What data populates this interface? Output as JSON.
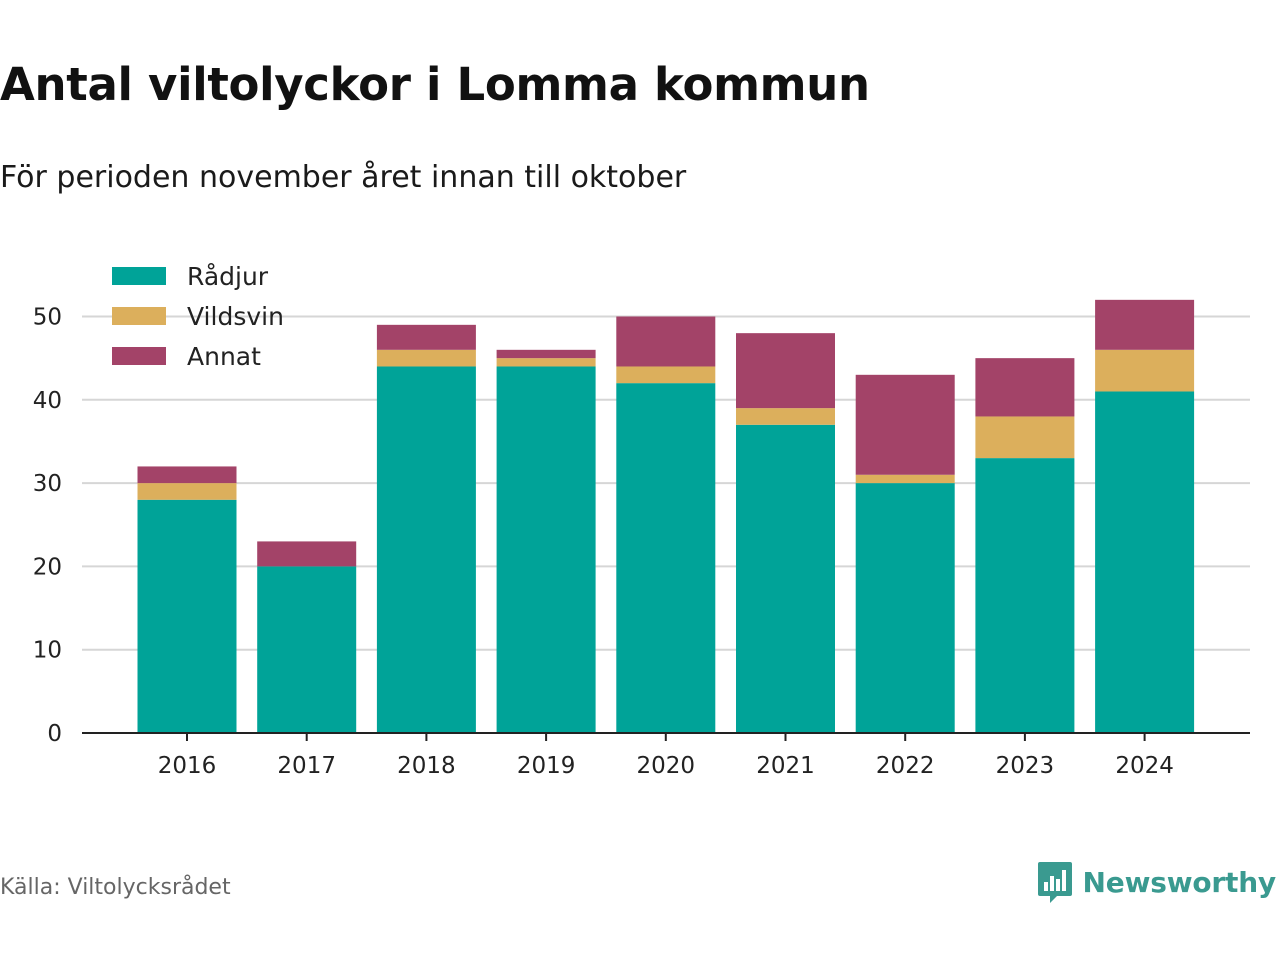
{
  "title": "Antal viltolyckor i Lomma kommun",
  "subtitle": "För perioden november året innan till oktober",
  "source": "Källa: Viltolycksrådet",
  "brand": {
    "name": "Newsworthy",
    "icon": "newsworthy-logo-icon",
    "color": "#3a9a90"
  },
  "chart_data": {
    "type": "bar",
    "stacked": true,
    "title": "Antal viltolyckor i Lomma kommun",
    "subtitle": "För perioden november året innan till oktober",
    "categories": [
      "2016",
      "2017",
      "2018",
      "2019",
      "2020",
      "2021",
      "2022",
      "2023",
      "2024"
    ],
    "series": [
      {
        "name": "Rådjur",
        "color": "#00a398",
        "values": [
          28,
          20,
          44,
          44,
          42,
          37,
          30,
          33,
          41
        ]
      },
      {
        "name": "Vildsvin",
        "color": "#dcaf5c",
        "values": [
          2,
          0,
          2,
          1,
          2,
          2,
          1,
          5,
          5
        ]
      },
      {
        "name": "Annat",
        "color": "#a34368",
        "values": [
          2,
          3,
          3,
          1,
          6,
          9,
          12,
          7,
          6
        ]
      }
    ],
    "yticks": [
      0,
      10,
      20,
      30,
      40,
      50
    ],
    "ylim": [
      0,
      55
    ],
    "xlabel": "",
    "ylabel": "",
    "grid": true,
    "legend": "top-left"
  }
}
